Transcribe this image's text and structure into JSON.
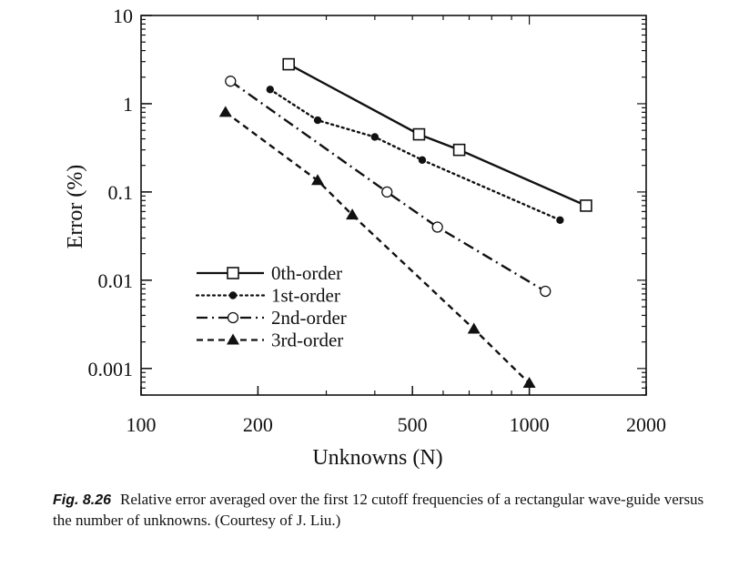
{
  "chart_data": {
    "type": "line",
    "x_scale": "log",
    "y_scale": "log",
    "xlabel": "Unknowns (N)",
    "ylabel": "Error (%)",
    "xlim": [
      100,
      2000
    ],
    "ylim": [
      0.0005,
      10
    ],
    "x_ticks": [
      {
        "value": 100,
        "label": "100"
      },
      {
        "value": 200,
        "label": "200"
      },
      {
        "value": 500,
        "label": "500"
      },
      {
        "value": 1000,
        "label": "1000"
      },
      {
        "value": 2000,
        "label": "2000"
      }
    ],
    "y_ticks": [
      {
        "value": 10,
        "label": "10"
      },
      {
        "value": 1,
        "label": "1"
      },
      {
        "value": 0.1,
        "label": "0.1"
      },
      {
        "value": 0.01,
        "label": "0.01"
      },
      {
        "value": 0.001,
        "label": "0.001"
      }
    ],
    "legend_position": "lower-left",
    "series": [
      {
        "name": "0th-order",
        "marker": "open-square",
        "dash": "solid",
        "points": [
          [
            240,
            2.8
          ],
          [
            520,
            0.45
          ],
          [
            660,
            0.3
          ],
          [
            1400,
            0.07
          ]
        ]
      },
      {
        "name": "1st-order",
        "marker": "filled-circle",
        "dash": "dotted",
        "points": [
          [
            215,
            1.45
          ],
          [
            285,
            0.65
          ],
          [
            400,
            0.42
          ],
          [
            530,
            0.23
          ],
          [
            1200,
            0.048
          ]
        ]
      },
      {
        "name": "2nd-order",
        "marker": "open-circle",
        "dash": "dash-dot",
        "points": [
          [
            170,
            1.8
          ],
          [
            430,
            0.1
          ],
          [
            580,
            0.04
          ],
          [
            1100,
            0.0075
          ]
        ]
      },
      {
        "name": "3rd-order",
        "marker": "filled-triangle",
        "dash": "dashed",
        "points": [
          [
            165,
            0.8
          ],
          [
            285,
            0.135
          ],
          [
            350,
            0.055
          ],
          [
            720,
            0.0028
          ],
          [
            1000,
            0.00068
          ]
        ]
      }
    ]
  },
  "caption": {
    "label": "Fig. 8.26",
    "text": "Relative error averaged over the first 12 cutoff frequencies of a rectangular wave-guide versus the number of unknowns. (Courtesy of J. Liu.)"
  }
}
